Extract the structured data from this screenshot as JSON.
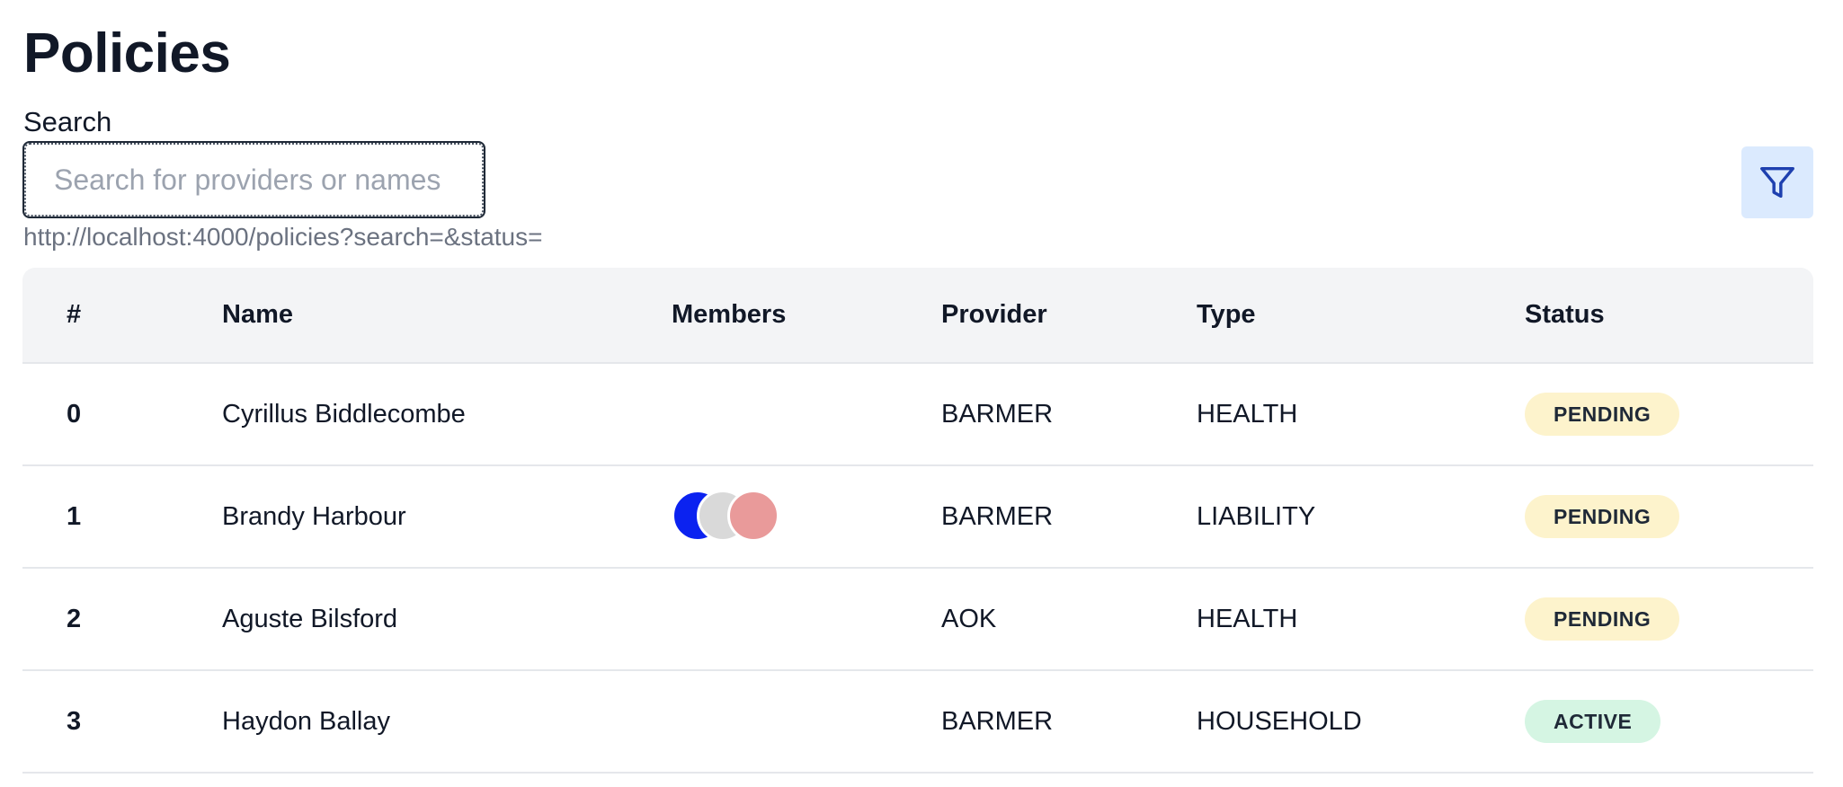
{
  "page": {
    "title": "Policies"
  },
  "search": {
    "label": "Search",
    "placeholder": "Search for providers or names",
    "value": "",
    "url": "http://localhost:4000/policies?search=&status="
  },
  "filter": {
    "icon": "filter-icon",
    "color": "#1e40af",
    "background": "#dbeafe"
  },
  "table": {
    "headers": {
      "num": "#",
      "name": "Name",
      "members": "Members",
      "provider": "Provider",
      "type": "Type",
      "status": "Status"
    },
    "rows": [
      {
        "num": "0",
        "name": "Cyrillus Biddlecombe",
        "members": [],
        "provider": "BARMER",
        "type": "HEALTH",
        "status": "PENDING"
      },
      {
        "num": "1",
        "name": "Brandy Harbour",
        "members": [
          "#0b22f0",
          "#d9d9d9",
          "#e99a9a"
        ],
        "provider": "BARMER",
        "type": "LIABILITY",
        "status": "PENDING"
      },
      {
        "num": "2",
        "name": "Aguste Bilsford",
        "members": [],
        "provider": "AOK",
        "type": "HEALTH",
        "status": "PENDING"
      },
      {
        "num": "3",
        "name": "Haydon Ballay",
        "members": [],
        "provider": "BARMER",
        "type": "HOUSEHOLD",
        "status": "ACTIVE"
      }
    ]
  },
  "colors": {
    "pending_badge": "#fdf3cc",
    "active_badge": "#d5f5e3",
    "header_bg": "#f3f4f6"
  }
}
